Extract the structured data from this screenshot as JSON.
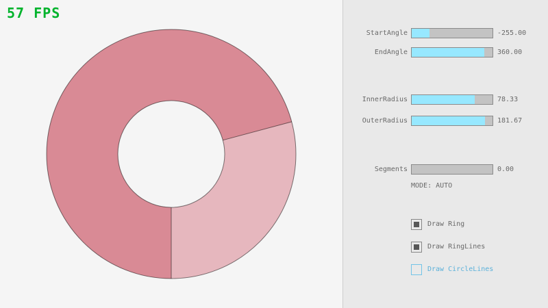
{
  "fps": {
    "text": "57 FPS"
  },
  "panel": {
    "sliders": [
      {
        "label": "StartAngle",
        "value": "-255.00",
        "fill_pct": 21.7
      },
      {
        "label": "EndAngle",
        "value": "360.00",
        "fill_pct": 90.0
      },
      {
        "label": "InnerRadius",
        "value": "78.33",
        "fill_pct": 78.3
      },
      {
        "label": "OuterRadius",
        "value": "181.67",
        "fill_pct": 90.8
      },
      {
        "label": "Segments",
        "value": "0.00",
        "fill_pct": 0
      }
    ],
    "mode_text": "MODE: AUTO",
    "checkboxes": [
      {
        "label": "Draw Ring",
        "checked": true
      },
      {
        "label": "Draw RingLines",
        "checked": true
      },
      {
        "label": "Draw CircleLines",
        "checked": false
      }
    ]
  },
  "colors": {
    "canvas_bg": "#f5f5f5",
    "panel_bg": "#e9e9e9",
    "panel_border": "#cdcdcd",
    "fps_color": "#00b32c",
    "ring_light": "#e6b7be",
    "ring_dark": "#d98a95",
    "ring_outline": "rgba(0,0,0,0.5)",
    "slider_track": "#c3c3c3",
    "slider_border": "#8a8a8a",
    "slider_fill": "#97e8ff",
    "label_color": "#696969",
    "checkbox_border": "#878787",
    "checkbox_fill": "#575757",
    "check_accent": "#72c4e8",
    "check_text_off": "#5cb1da"
  }
}
